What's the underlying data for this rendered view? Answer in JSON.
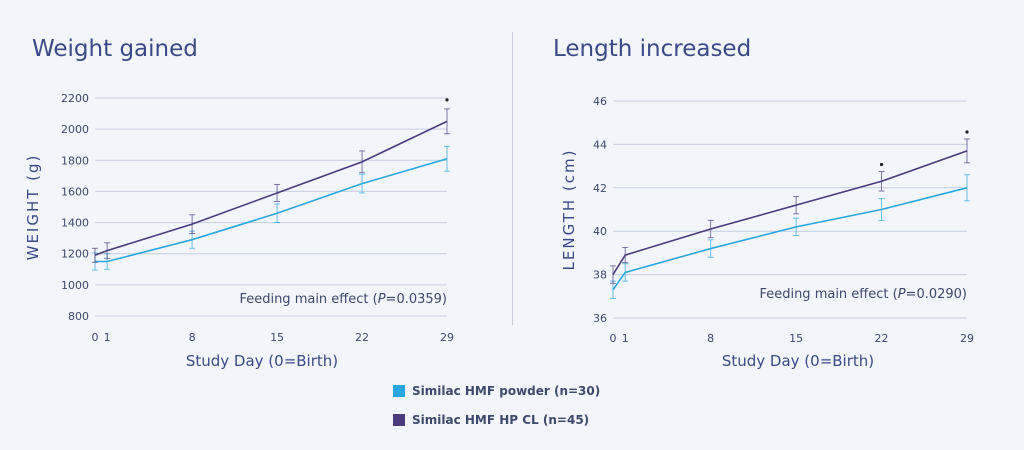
{
  "legend": {
    "items": [
      {
        "label": "Similac HMF powder (n=30)",
        "color": "#2aa7de"
      },
      {
        "label": "Similac HMF HP CL (n=45)",
        "color": "#4a3b7d"
      }
    ]
  },
  "chart_data": [
    {
      "type": "line",
      "title": "Weight gained",
      "xlabel": "Study Day (0=Birth)",
      "ylabel": "WEIGHT (g)",
      "x": [
        0,
        1,
        8,
        15,
        22,
        29
      ],
      "xlim": [
        0,
        29
      ],
      "ylim": [
        800,
        2200
      ],
      "yticks": [
        800,
        1000,
        1200,
        1400,
        1600,
        1800,
        2000,
        2200
      ],
      "grid": true,
      "annotation": {
        "pre": "Feeding main effect (",
        "p": "P",
        "post": "=0.0359)"
      },
      "series": [
        {
          "name": "Similac HMF powder (n=30)",
          "color": "#2aa7de",
          "values": [
            1150,
            1150,
            1290,
            1460,
            1650,
            1810
          ],
          "errors": [
            55,
            50,
            55,
            60,
            60,
            80
          ]
        },
        {
          "name": "Similac HMF HP CL (n=45)",
          "color": "#4a3b7d",
          "values": [
            1190,
            1220,
            1390,
            1590,
            1790,
            2050
          ],
          "errors": [
            45,
            50,
            60,
            55,
            70,
            80
          ],
          "significant_x": [
            29
          ]
        }
      ]
    },
    {
      "type": "line",
      "title": "Length increased",
      "xlabel": "Study Day (0=Birth)",
      "ylabel": "LENGTH (cm)",
      "x": [
        0,
        1,
        8,
        15,
        22,
        29
      ],
      "xlim": [
        0,
        29
      ],
      "ylim": [
        36,
        46
      ],
      "yticks": [
        36,
        38,
        40,
        42,
        44,
        46
      ],
      "grid": true,
      "annotation": {
        "pre": "Feeding main effect (",
        "p": "P",
        "post": "=0.0290)"
      },
      "series": [
        {
          "name": "Similac HMF powder (n=30)",
          "color": "#2aa7de",
          "values": [
            37.3,
            38.1,
            39.2,
            40.2,
            41.0,
            42.0
          ],
          "errors": [
            0.4,
            0.4,
            0.4,
            0.4,
            0.5,
            0.6
          ]
        },
        {
          "name": "Similac HMF HP CL (n=45)",
          "color": "#4a3b7d",
          "values": [
            38.0,
            38.9,
            40.1,
            41.2,
            42.3,
            43.7
          ],
          "errors": [
            0.4,
            0.35,
            0.4,
            0.4,
            0.45,
            0.55
          ],
          "significant_x": [
            22,
            29
          ]
        }
      ]
    }
  ]
}
